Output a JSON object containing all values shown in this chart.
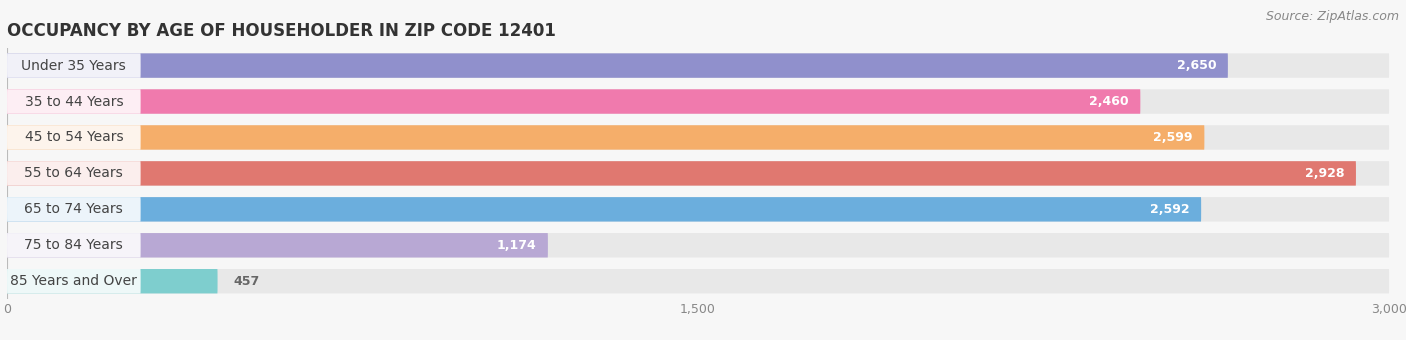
{
  "title": "OCCUPANCY BY AGE OF HOUSEHOLDER IN ZIP CODE 12401",
  "source": "Source: ZipAtlas.com",
  "categories": [
    "Under 35 Years",
    "35 to 44 Years",
    "45 to 54 Years",
    "55 to 64 Years",
    "65 to 74 Years",
    "75 to 84 Years",
    "85 Years and Over"
  ],
  "values": [
    2650,
    2460,
    2599,
    2928,
    2592,
    1174,
    457
  ],
  "bar_colors": [
    "#9090CC",
    "#F07AAD",
    "#F5AE6A",
    "#E07870",
    "#6BAEDD",
    "#B8A8D4",
    "#7ECECE"
  ],
  "bar_bg_color": "#E8E8E8",
  "background_color": "#F7F7F7",
  "xlim_max": 3000,
  "xticks": [
    0,
    1500,
    3000
  ],
  "title_fontsize": 12,
  "label_fontsize": 10,
  "value_fontsize": 9,
  "source_fontsize": 9
}
